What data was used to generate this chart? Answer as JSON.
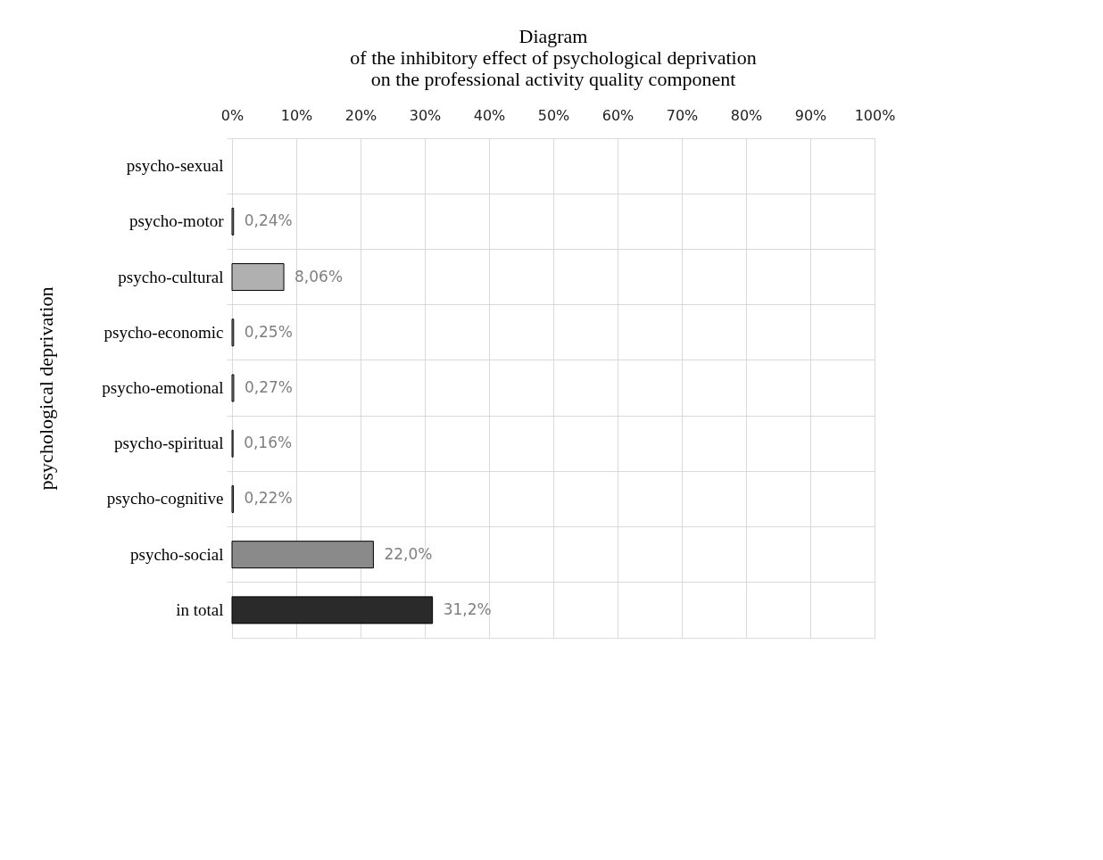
{
  "chart_data": {
    "type": "bar",
    "orientation": "horizontal",
    "title": [
      "Diagram",
      "of the inhibitory effect of psychological deprivation",
      "on the professional activity quality component"
    ],
    "ylabel": "psychological deprivation",
    "categories": [
      "psycho-sexual",
      "psycho-motor",
      "psycho-cultural",
      "psycho-economic",
      "psycho-emotional",
      "psycho-spiritual",
      "psycho-cognitive",
      "psycho-social",
      "in total"
    ],
    "values": [
      null,
      0.24,
      8.06,
      0.25,
      0.27,
      0.16,
      0.22,
      22.0,
      31.2
    ],
    "value_labels": [
      null,
      "0,24%",
      "8,06%",
      "0,25%",
      "0,27%",
      "0,16%",
      "0,22%",
      "22,0%",
      "31,2%"
    ],
    "colors": [
      "#999999",
      "#999999",
      "#b0b0b0",
      "#999999",
      "#999999",
      "#999999",
      "#999999",
      "#8a8a8a",
      "#2a2a2a"
    ],
    "xlim": [
      0,
      100
    ],
    "xticks": [
      {
        "value": 0,
        "label": "0%"
      },
      {
        "value": 10,
        "label": "10%"
      },
      {
        "value": 20,
        "label": "20%"
      },
      {
        "value": 30,
        "label": "30%"
      },
      {
        "value": 40,
        "label": "40%"
      },
      {
        "value": 50,
        "label": "50%"
      },
      {
        "value": 60,
        "label": "60%"
      },
      {
        "value": 70,
        "label": "70%"
      },
      {
        "value": 80,
        "label": "80%"
      },
      {
        "value": 90,
        "label": "90%"
      },
      {
        "value": 100,
        "label": "100%"
      }
    ],
    "grid": true
  }
}
